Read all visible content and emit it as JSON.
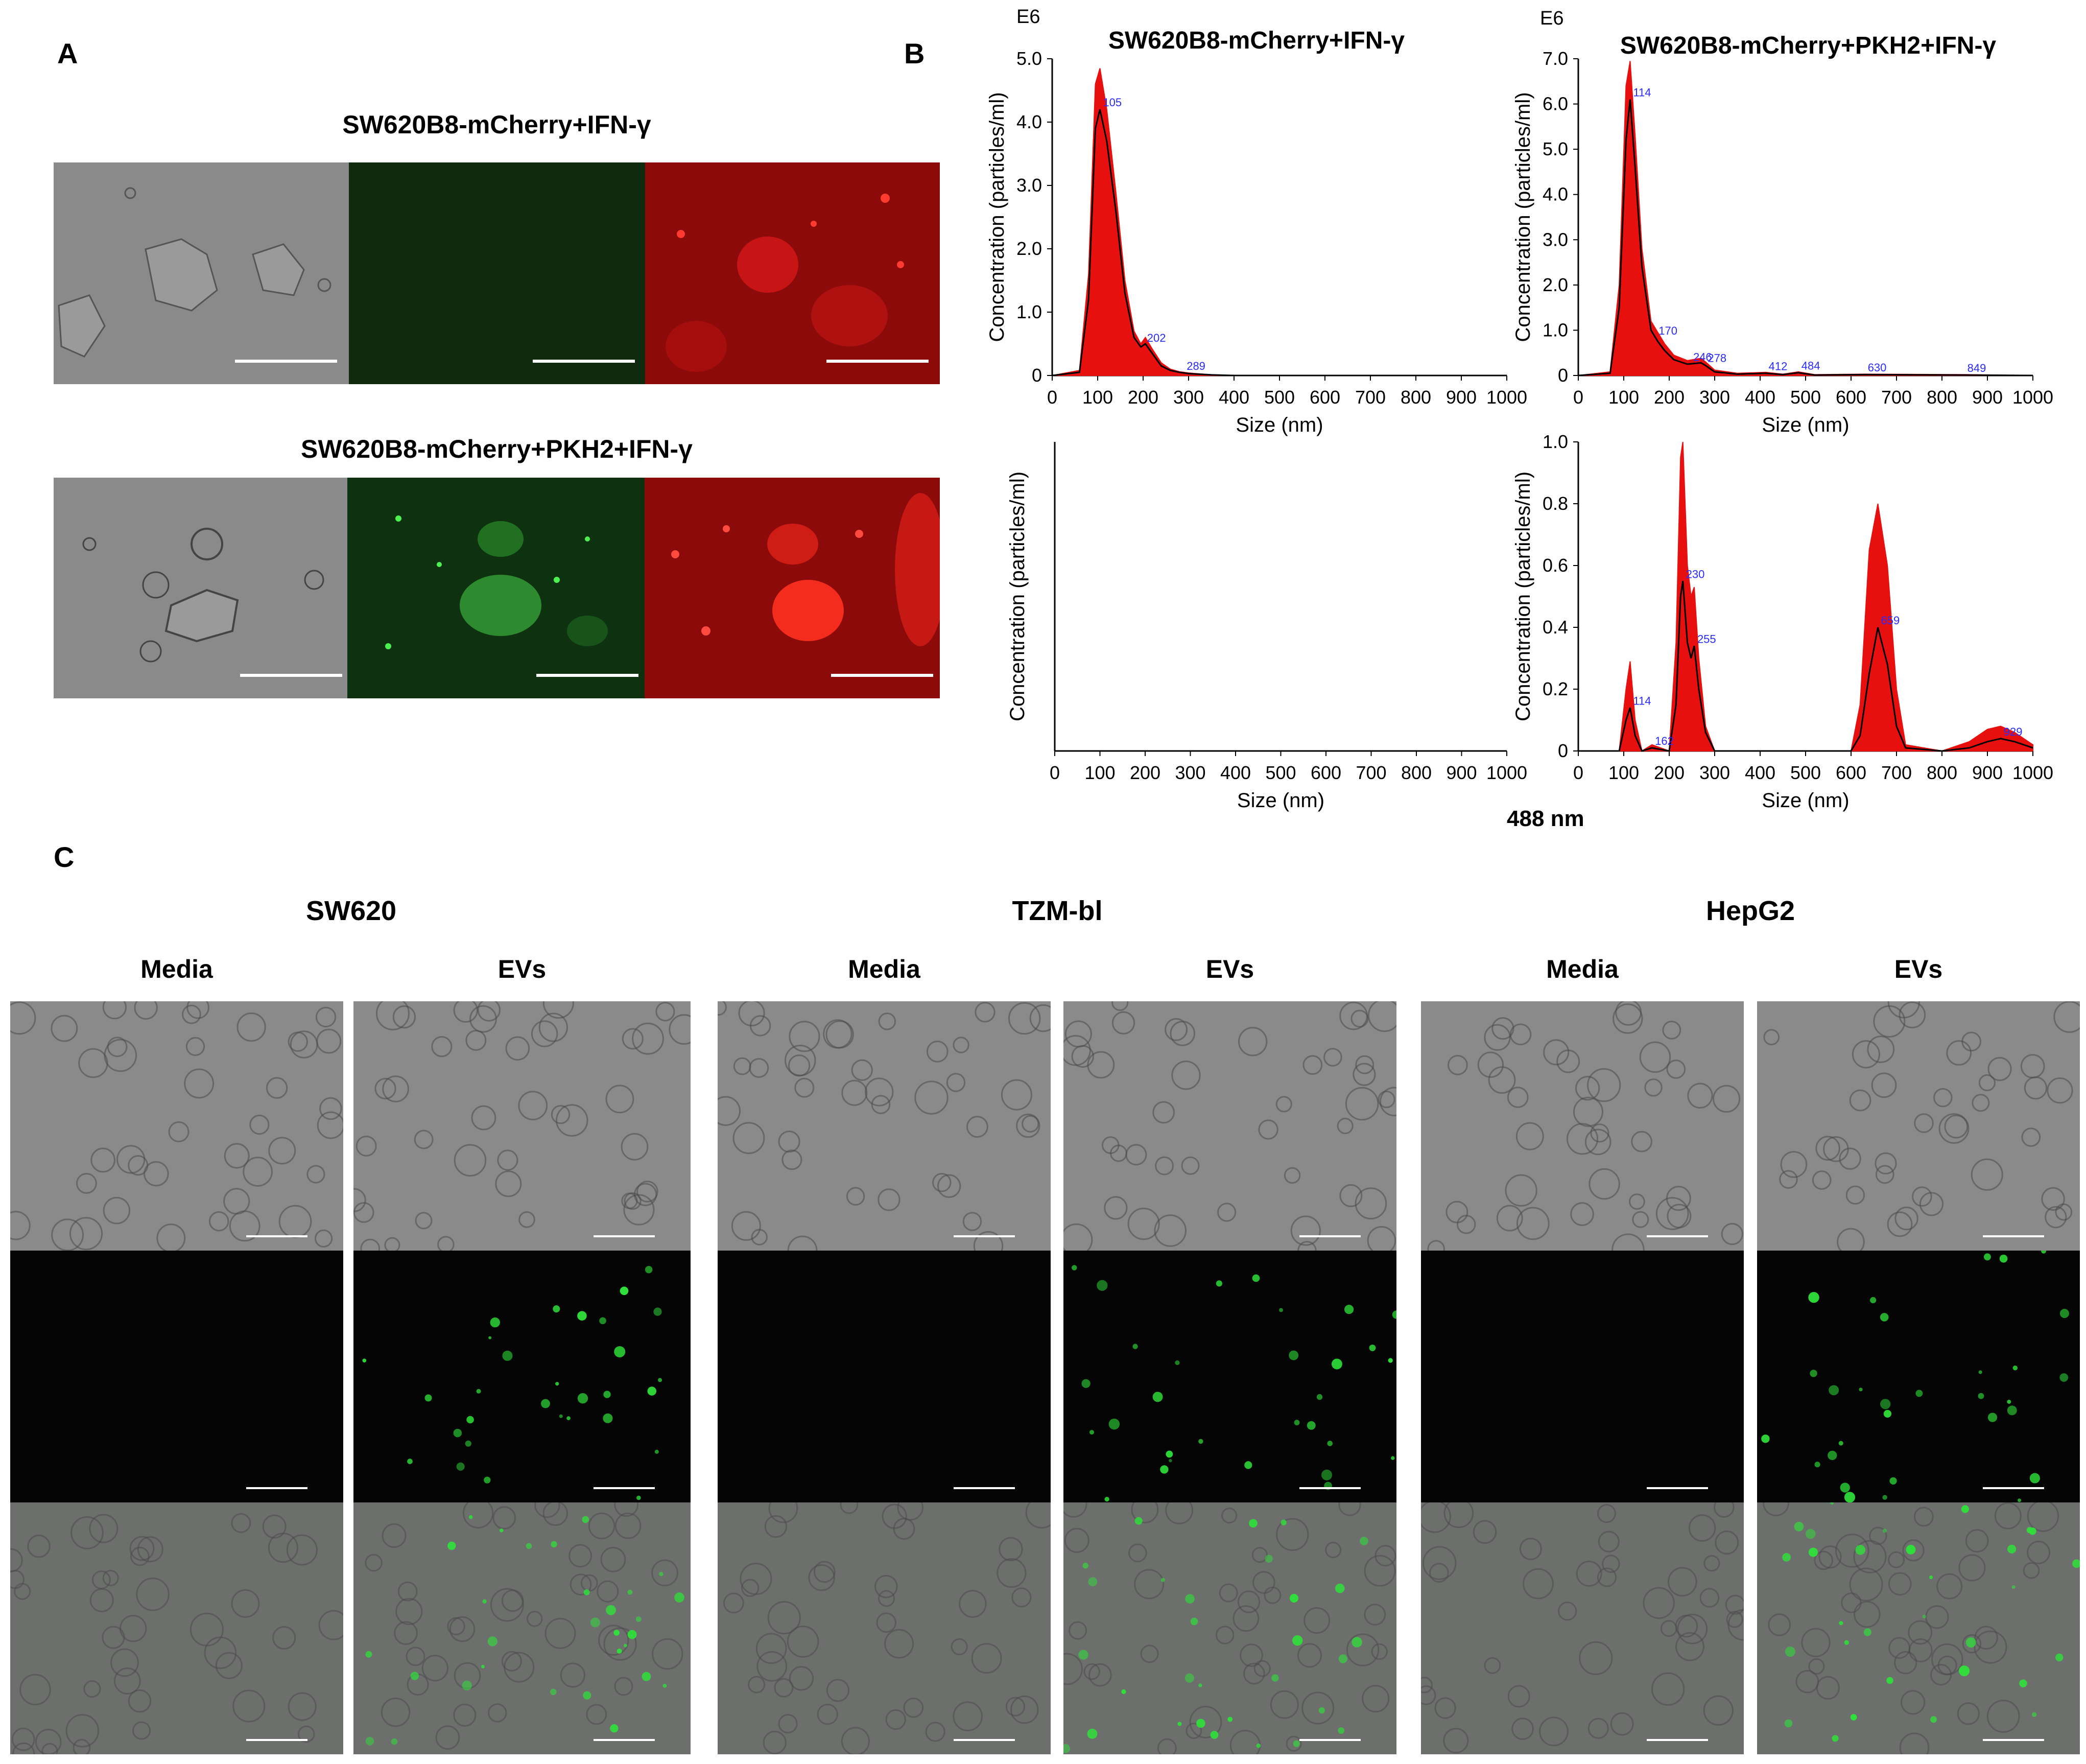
{
  "panels": {
    "a": {
      "letter": "A",
      "row1_title": "SW620B8-mCherry+IFN-γ",
      "row2_title": "SW620B8-mCherry+PKH2+IFN-γ"
    },
    "b": {
      "letter": "B",
      "footer_label": "488 nm"
    },
    "c": {
      "letter": "C",
      "groups": [
        {
          "name": "SW620",
          "cols": [
            "Media",
            "EVs"
          ]
        },
        {
          "name": "TZM-bl",
          "cols": [
            "Media",
            "EVs"
          ]
        },
        {
          "name": "HepG2",
          "cols": [
            "Media",
            "EVs"
          ]
        }
      ]
    }
  },
  "colors": {
    "curve_fill": "#e8100f",
    "curve_line": "#000000",
    "peak_label": "#2b2bff",
    "green_signal": "#2fe03a",
    "red_signal": "#ff2a20"
  },
  "chart_data": [
    {
      "type": "area",
      "title": "SW620B8-mCherry+IFN-γ",
      "multiplier_label": "E6",
      "xlabel": "Size (nm)",
      "ylabel": "Concentration (particles/ml)",
      "xlim": [
        0,
        1000
      ],
      "ylim": [
        0,
        5.0
      ],
      "xticks": [
        "0",
        "100",
        "200",
        "300",
        "400",
        "500",
        "600",
        "700",
        "800",
        "900",
        "1000"
      ],
      "yticks": [
        "0",
        "1.0",
        "2.0",
        "3.0",
        "4.0",
        "5.0"
      ],
      "x": [
        0,
        60,
        80,
        95,
        105,
        120,
        140,
        160,
        180,
        195,
        205,
        220,
        240,
        260,
        280,
        300,
        350,
        400,
        1000
      ],
      "y": [
        0,
        0.05,
        1.2,
        3.9,
        4.2,
        3.7,
        2.6,
        1.3,
        0.6,
        0.45,
        0.5,
        0.35,
        0.15,
        0.08,
        0.05,
        0.03,
        0.01,
        0,
        0
      ],
      "y_upper": [
        0,
        0.08,
        1.6,
        4.6,
        4.85,
        4.2,
        2.9,
        1.5,
        0.7,
        0.5,
        0.6,
        0.42,
        0.2,
        0.1,
        0.06,
        0.04,
        0.01,
        0,
        0
      ],
      "peak_labels": [
        {
          "x": 105,
          "label": "105"
        },
        {
          "x": 202,
          "label": "202"
        },
        {
          "x": 289,
          "label": "289"
        }
      ]
    },
    {
      "type": "area",
      "title": "SW620B8-mCherry+PKH2+IFN-γ",
      "multiplier_label": "E6",
      "xlabel": "Size (nm)",
      "ylabel": "Concentration (particles/ml)",
      "xlim": [
        0,
        1000
      ],
      "ylim": [
        0,
        7.0
      ],
      "xticks": [
        "0",
        "100",
        "200",
        "300",
        "400",
        "500",
        "600",
        "700",
        "800",
        "900",
        "1000"
      ],
      "yticks": [
        "0",
        "1.0",
        "2.0",
        "3.0",
        "4.0",
        "5.0",
        "6.0",
        "7.0"
      ],
      "x": [
        0,
        70,
        90,
        105,
        114,
        125,
        140,
        160,
        175,
        190,
        210,
        240,
        270,
        280,
        300,
        350,
        412,
        450,
        484,
        520,
        630,
        849,
        1000
      ],
      "y": [
        0,
        0.05,
        1.5,
        5.2,
        6.1,
        4.6,
        2.4,
        1.0,
        0.75,
        0.55,
        0.35,
        0.25,
        0.28,
        0.22,
        0.08,
        0.03,
        0.05,
        0.02,
        0.06,
        0.01,
        0.02,
        0.01,
        0
      ],
      "y_upper": [
        0,
        0.08,
        2.0,
        6.4,
        6.95,
        5.3,
        2.8,
        1.2,
        0.95,
        0.7,
        0.45,
        0.33,
        0.38,
        0.3,
        0.12,
        0.05,
        0.07,
        0.03,
        0.08,
        0.02,
        0.03,
        0.02,
        0
      ],
      "peak_labels": [
        {
          "x": 114,
          "label": "114"
        },
        {
          "x": 170,
          "label": "170"
        },
        {
          "x": 246,
          "label": "246"
        },
        {
          "x": 278,
          "label": "278"
        },
        {
          "x": 412,
          "label": "412"
        },
        {
          "x": 484,
          "label": "484"
        },
        {
          "x": 630,
          "label": "630"
        },
        {
          "x": 849,
          "label": "849"
        }
      ]
    },
    {
      "type": "area",
      "title": "",
      "xlabel": "Size (nm)",
      "ylabel": "Concentration (particles/ml)",
      "xlim": [
        0,
        1000
      ],
      "ylim": [
        0,
        1
      ],
      "xticks": [
        "0",
        "100",
        "200",
        "300",
        "400",
        "500",
        "600",
        "700",
        "800",
        "900",
        "1000"
      ],
      "yticks": [],
      "x": [],
      "y": []
    },
    {
      "type": "area",
      "title": "",
      "xlabel": "Size (nm)",
      "ylabel": "Concentration (particles/ml)",
      "xlim": [
        0,
        1000
      ],
      "ylim": [
        0,
        1.0
      ],
      "xticks": [
        "0",
        "100",
        "200",
        "300",
        "400",
        "500",
        "600",
        "700",
        "800",
        "900",
        "1000"
      ],
      "yticks": [
        "0",
        "0.2",
        "0.4",
        "0.6",
        "0.8",
        "1.0"
      ],
      "x": [
        0,
        90,
        105,
        114,
        125,
        140,
        162,
        200,
        215,
        225,
        230,
        240,
        248,
        255,
        265,
        280,
        300,
        600,
        620,
        640,
        659,
        680,
        700,
        720,
        800,
        860,
        900,
        929,
        960,
        1000
      ],
      "y": [
        0,
        0,
        0.1,
        0.14,
        0.05,
        0,
        0.01,
        0,
        0.15,
        0.5,
        0.55,
        0.35,
        0.3,
        0.34,
        0.2,
        0.06,
        0,
        0,
        0.05,
        0.25,
        0.4,
        0.28,
        0.08,
        0.01,
        0,
        0.01,
        0.03,
        0.04,
        0.03,
        0.01
      ],
      "y_upper": [
        0,
        0,
        0.2,
        0.29,
        0.1,
        0,
        0.02,
        0,
        0.35,
        0.95,
        1.0,
        0.6,
        0.5,
        0.53,
        0.3,
        0.08,
        0,
        0,
        0.15,
        0.65,
        0.8,
        0.6,
        0.2,
        0.02,
        0,
        0.03,
        0.07,
        0.08,
        0.06,
        0.02
      ],
      "peak_labels": [
        {
          "x": 114,
          "label": "114"
        },
        {
          "x": 162,
          "label": "162"
        },
        {
          "x": 230,
          "label": "230"
        },
        {
          "x": 255,
          "label": "255"
        },
        {
          "x": 659,
          "label": "659"
        },
        {
          "x": 929,
          "label": "929"
        }
      ]
    }
  ]
}
